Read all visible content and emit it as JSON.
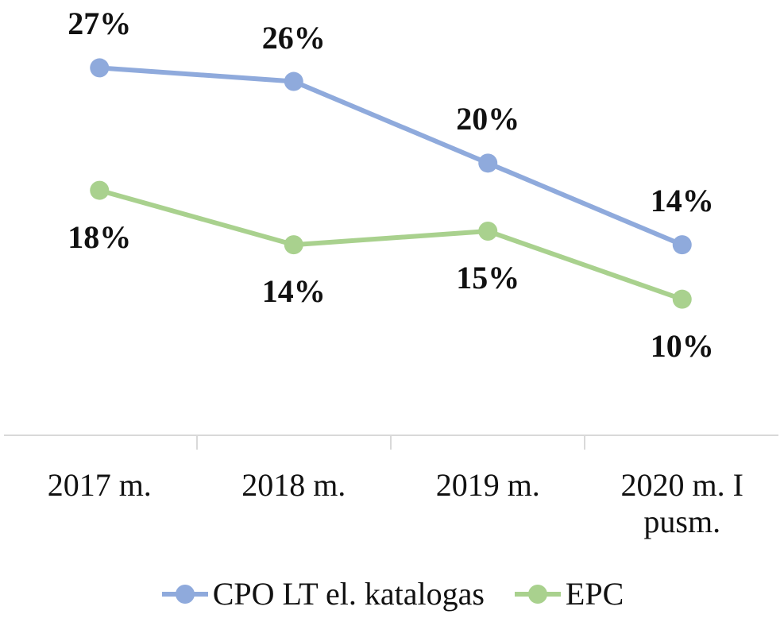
{
  "chart_data": {
    "type": "line",
    "categories": [
      "2017 m.",
      "2018 m.",
      "2019 m.",
      "2020 m. I pusm."
    ],
    "series": [
      {
        "name": "CPO LT el. katalogas",
        "color": "#8faadc",
        "values": [
          27,
          26,
          20,
          14
        ],
        "value_labels": [
          "27%",
          "26%",
          "20%",
          "14%"
        ]
      },
      {
        "name": "EPC",
        "color": "#a9d18e",
        "values": [
          18,
          14,
          15,
          10
        ],
        "value_labels": [
          "18%",
          "14%",
          "15%",
          "10%"
        ]
      }
    ],
    "ylim": [
      0,
      30
    ]
  }
}
